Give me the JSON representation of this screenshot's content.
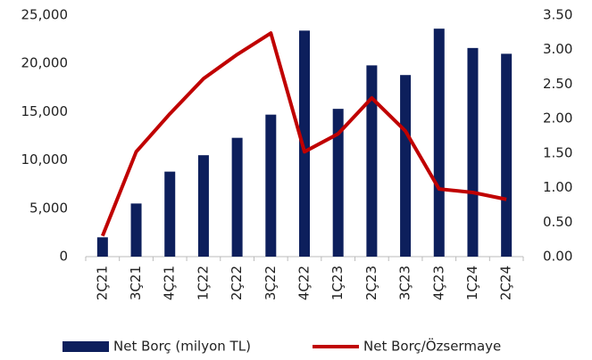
{
  "chart_data": {
    "type": "bar_line",
    "categories": [
      "2Ç21",
      "3Ç21",
      "4Ç21",
      "1Ç22",
      "2Ç22",
      "3Ç22",
      "4Ç22",
      "1Ç23",
      "2Ç23",
      "3Ç23",
      "4Ç23",
      "1Ç24",
      "2Ç24"
    ],
    "series": [
      {
        "name": "Net Borç (milyon TL)",
        "type": "bar",
        "color": "#0d1f5c",
        "values": [
          2000,
          5500,
          8800,
          10500,
          12300,
          14700,
          23400,
          15300,
          19800,
          18800,
          23600,
          21600,
          21000
        ]
      },
      {
        "name": "Net Borç/Özsermaye",
        "type": "line",
        "axis": "y2",
        "color": "#c00000",
        "values": [
          0.3,
          1.52,
          2.07,
          2.58,
          2.93,
          3.24,
          1.52,
          1.78,
          2.3,
          1.82,
          0.98,
          0.93,
          0.83
        ]
      }
    ],
    "ylim": [
      0,
      25000
    ],
    "yticks": [
      0,
      {
        "value": 5000,
        "label": "5,000"
      },
      {
        "value": 10000,
        "label": "10,000"
      },
      {
        "value": 15000,
        "label": "15,000"
      },
      {
        "value": 20000,
        "label": "20,000"
      },
      {
        "value": 25000,
        "label": "25,000"
      }
    ],
    "y2lim": [
      0,
      3.5
    ],
    "y2ticks": [
      {
        "value": 0,
        "label": "0.00"
      },
      {
        "value": 0.5,
        "label": "0.50"
      },
      {
        "value": 1,
        "label": "1.00"
      },
      {
        "value": 1.5,
        "label": "1.50"
      },
      {
        "value": 2,
        "label": "2.00"
      },
      {
        "value": 2.5,
        "label": "2.50"
      },
      {
        "value": 3,
        "label": "3.00"
      },
      {
        "value": 3.5,
        "label": "3.50"
      }
    ],
    "legend": "bottom"
  }
}
